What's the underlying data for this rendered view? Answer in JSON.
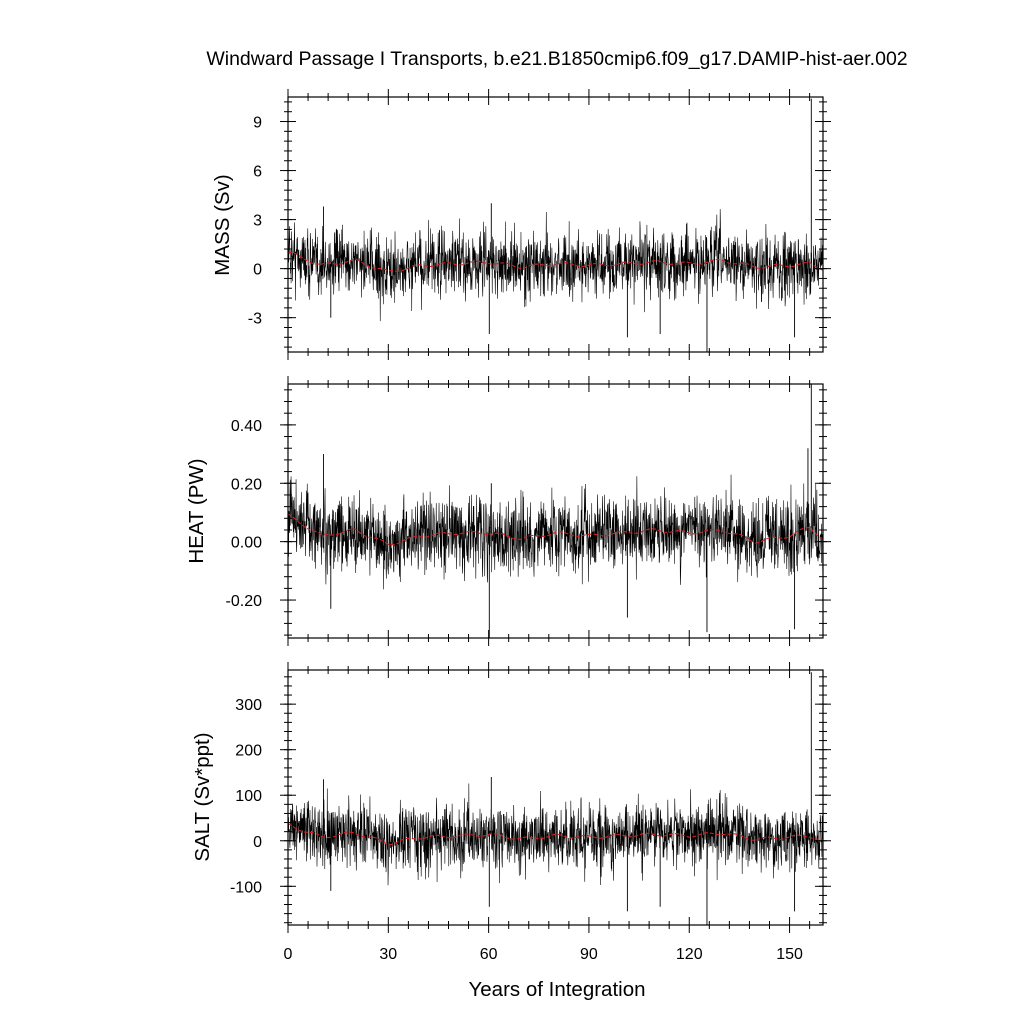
{
  "chart_data": {
    "type": "line",
    "title": "Windward Passage I Transports, b.e21.B1850cmip6.f09_g17.DAMIP-hist-aer.002",
    "xlabel": "Years of Integration",
    "xlim": [
      0,
      160
    ],
    "xticks": [
      0,
      30,
      60,
      90,
      120,
      150
    ],
    "xtick_labels": [
      "0",
      "30",
      "60",
      "90",
      "120",
      "150"
    ],
    "grid": false,
    "panels": [
      {
        "ylabel": "MASS (Sv)",
        "ylim": [
          -5.1,
          10.5
        ],
        "yticks": [
          9,
          6,
          3,
          0,
          -3
        ],
        "ytick_labels": [
          "9",
          "6",
          "3",
          "0",
          "-3"
        ],
        "series": [
          {
            "kind": "monthly",
            "color": "#000000",
            "x": [
              0,
              10,
              20,
              30,
              40,
              50,
              60,
              70,
              80,
              90,
              100,
              110,
              120,
              130,
              140,
              150,
              156,
              160
            ],
            "y": [
              1.0,
              0.2,
              0.5,
              -0.2,
              0.2,
              0.3,
              0.4,
              0.1,
              0.3,
              0.2,
              0.3,
              0.4,
              0.3,
              0.5,
              0.1,
              0.2,
              0.3,
              0.0
            ],
            "noise_sd": 1.0
          },
          {
            "kind": "smoothed",
            "color": "#d42020",
            "x": [
              0,
              10,
              20,
              30,
              40,
              50,
              60,
              70,
              80,
              90,
              100,
              110,
              120,
              130,
              140,
              150,
              156,
              160
            ],
            "y": [
              1.0,
              0.2,
              0.5,
              -0.2,
              0.2,
              0.3,
              0.4,
              0.1,
              0.3,
              0.2,
              0.3,
              0.4,
              0.3,
              0.5,
              0.1,
              0.2,
              0.3,
              0.0
            ]
          }
        ],
        "spikes": [
          {
            "x": 10.6,
            "y": 3.8
          },
          {
            "x": 12.8,
            "y": -3.0
          },
          {
            "x": 60.2,
            "y": -4.0
          },
          {
            "x": 60.8,
            "y": 4.0
          },
          {
            "x": 101.5,
            "y": -4.2
          },
          {
            "x": 111.3,
            "y": -4.0
          },
          {
            "x": 125.3,
            "y": -5.1
          },
          {
            "x": 151.5,
            "y": -4.2
          },
          {
            "x": 156.5,
            "y": 10.4
          }
        ]
      },
      {
        "ylabel": "HEAT (PW)",
        "ylim": [
          -0.33,
          0.54
        ],
        "yticks": [
          0.4,
          0.2,
          0.0,
          -0.2
        ],
        "ytick_labels": [
          "0.40",
          "0.20",
          "0.00",
          "-0.20"
        ],
        "series": [
          {
            "kind": "monthly",
            "color": "#000000",
            "x": [
              0,
              10,
              20,
              30,
              40,
              50,
              60,
              70,
              80,
              90,
              100,
              110,
              120,
              130,
              140,
              150,
              156,
              160
            ],
            "y": [
              0.09,
              0.02,
              0.04,
              -0.01,
              0.02,
              0.03,
              0.03,
              0.01,
              0.03,
              0.02,
              0.03,
              0.04,
              0.03,
              0.04,
              0.0,
              0.02,
              0.05,
              0.01
            ],
            "noise_sd": 0.065
          },
          {
            "kind": "smoothed",
            "color": "#d42020",
            "x": [
              0,
              10,
              20,
              30,
              40,
              50,
              60,
              70,
              80,
              90,
              100,
              110,
              120,
              130,
              140,
              150,
              156,
              160
            ],
            "y": [
              0.09,
              0.02,
              0.04,
              -0.01,
              0.02,
              0.03,
              0.03,
              0.01,
              0.03,
              0.02,
              0.03,
              0.04,
              0.03,
              0.04,
              0.0,
              0.02,
              0.05,
              0.01
            ]
          }
        ],
        "spikes": [
          {
            "x": 10.6,
            "y": 0.3
          },
          {
            "x": 12.8,
            "y": -0.23
          },
          {
            "x": 60.2,
            "y": -0.33
          },
          {
            "x": 60.8,
            "y": 0.2
          },
          {
            "x": 101.5,
            "y": -0.26
          },
          {
            "x": 125.3,
            "y": -0.31
          },
          {
            "x": 151.5,
            "y": -0.3
          },
          {
            "x": 155.5,
            "y": 0.32
          },
          {
            "x": 156.5,
            "y": 0.54
          }
        ]
      },
      {
        "ylabel": "SALT (Sv*ppt)",
        "ylim": [
          -185,
          375
        ],
        "yticks": [
          300,
          200,
          100,
          0,
          -100
        ],
        "ytick_labels": [
          "300",
          "200",
          "100",
          "0",
          "-100"
        ],
        "series": [
          {
            "kind": "monthly",
            "color": "#000000",
            "x": [
              0,
              10,
              20,
              30,
              40,
              50,
              60,
              70,
              80,
              90,
              100,
              110,
              120,
              130,
              140,
              150,
              156,
              160
            ],
            "y": [
              35,
              8,
              18,
              -6,
              8,
              10,
              14,
              4,
              11,
              8,
              11,
              14,
              11,
              17,
              3,
              8,
              11,
              0
            ],
            "noise_sd": 35
          },
          {
            "kind": "smoothed",
            "color": "#d42020",
            "x": [
              0,
              10,
              20,
              30,
              40,
              50,
              60,
              70,
              80,
              90,
              100,
              110,
              120,
              130,
              140,
              150,
              156,
              160
            ],
            "y": [
              35,
              8,
              18,
              -6,
              8,
              10,
              14,
              4,
              11,
              8,
              11,
              14,
              11,
              17,
              3,
              8,
              11,
              0
            ]
          }
        ],
        "spikes": [
          {
            "x": 10.6,
            "y": 135
          },
          {
            "x": 12.8,
            "y": -110
          },
          {
            "x": 60.2,
            "y": -145
          },
          {
            "x": 60.8,
            "y": 140
          },
          {
            "x": 101.5,
            "y": -155
          },
          {
            "x": 111.3,
            "y": -145
          },
          {
            "x": 125.3,
            "y": -185
          },
          {
            "x": 151.5,
            "y": -155
          },
          {
            "x": 156.5,
            "y": 370
          }
        ]
      }
    ]
  }
}
